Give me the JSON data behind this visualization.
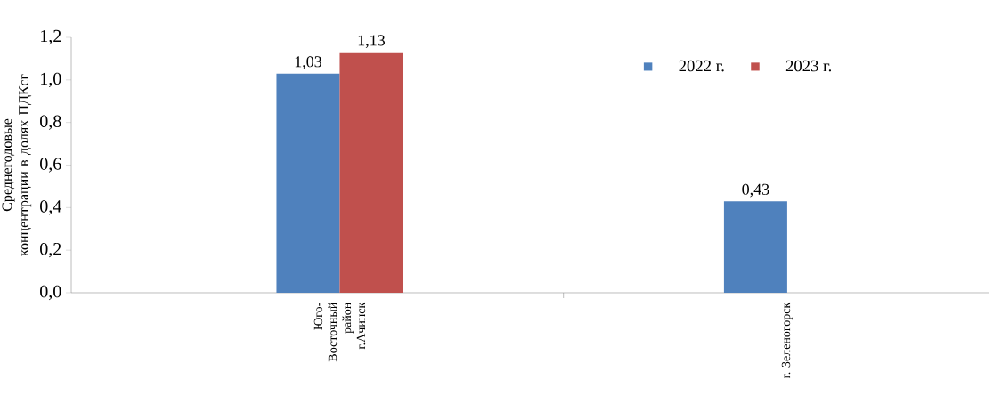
{
  "chart_data": {
    "type": "bar",
    "ylabel": "Среднегодовые концентрации в долях ПДКсг",
    "categories": [
      "Юго-Восточный район г.Ачинск",
      "г. Зеленогорск"
    ],
    "series": [
      {
        "name": "2022 г.",
        "color": "#4f81bd",
        "values": [
          1.03,
          0.43
        ],
        "value_labels": [
          "1,03",
          "0,43"
        ]
      },
      {
        "name": "2023 г.",
        "color": "#c0504d",
        "values": [
          1.13,
          null
        ],
        "value_labels": [
          "1,13",
          null
        ]
      }
    ],
    "ylim": [
      0,
      1.2
    ],
    "yticks": [
      {
        "value": 0,
        "label": "0,0"
      },
      {
        "value": 0.2,
        "label": "0,2"
      },
      {
        "value": 0.4,
        "label": "0,4"
      },
      {
        "value": 0.6,
        "label": "0,6"
      },
      {
        "value": 0.8,
        "label": "0,8"
      },
      {
        "value": 1.0,
        "label": "1,0"
      },
      {
        "value": 1.2,
        "label": "1,2"
      }
    ],
    "legend": "top right",
    "grid": false
  }
}
